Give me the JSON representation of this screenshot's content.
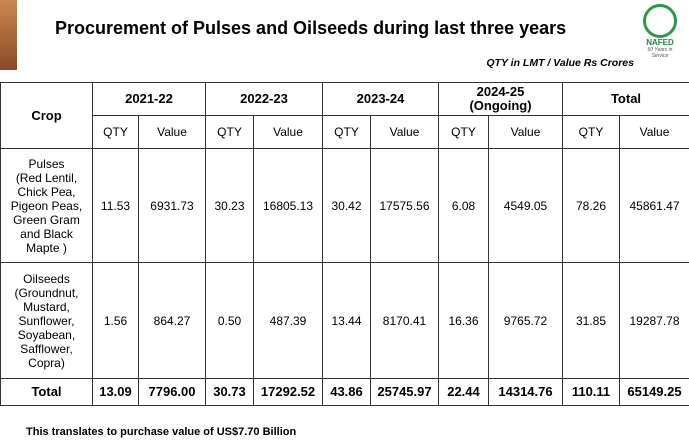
{
  "header": {
    "title": "Procurement  of Pulses and Oilseeds during last three years",
    "unit_note": "QTY in LMT / Value Rs Crores",
    "logo_text": "NAFED",
    "logo_tagline": "60 Years in Service"
  },
  "table": {
    "corner": "Crop",
    "years": [
      "2021-22",
      "2022-23",
      "2023-24",
      "2024-25\n(Ongoing)",
      "Total"
    ],
    "sub_headers": [
      "QTY",
      "Value",
      "QTY",
      "Value",
      "QTY",
      "Value",
      "QTY",
      "Value",
      "QTY",
      "Value"
    ],
    "rows": [
      [
        "Pulses\n(Red Lentil,\nChick Pea,\nPigeon Peas,\nGreen Gram\nand Black\nMapte )",
        "11.53",
        "6931.73",
        "30.23",
        "16805.13",
        "30.42",
        "17575.56",
        "6.08",
        "4549.05",
        "78.26",
        "45861.47"
      ],
      [
        "Oilseeds\n(Groundnut,\nMustard,\nSunflower,\nSoyabean,\nSafflower,\nCopra)",
        "1.56",
        "864.27",
        "0.50",
        "487.39",
        "13.44",
        "8170.41",
        "16.36",
        "9765.72",
        "31.85",
        "19287.78"
      ],
      [
        "Total",
        "13.09",
        "7796.00",
        "30.73",
        "17292.52",
        "43.86",
        "25745.97",
        "22.44",
        "14314.76",
        "110.11",
        "65149.25"
      ]
    ]
  },
  "footer": {
    "note": "This translates to purchase value of US$7.70 Billion"
  }
}
